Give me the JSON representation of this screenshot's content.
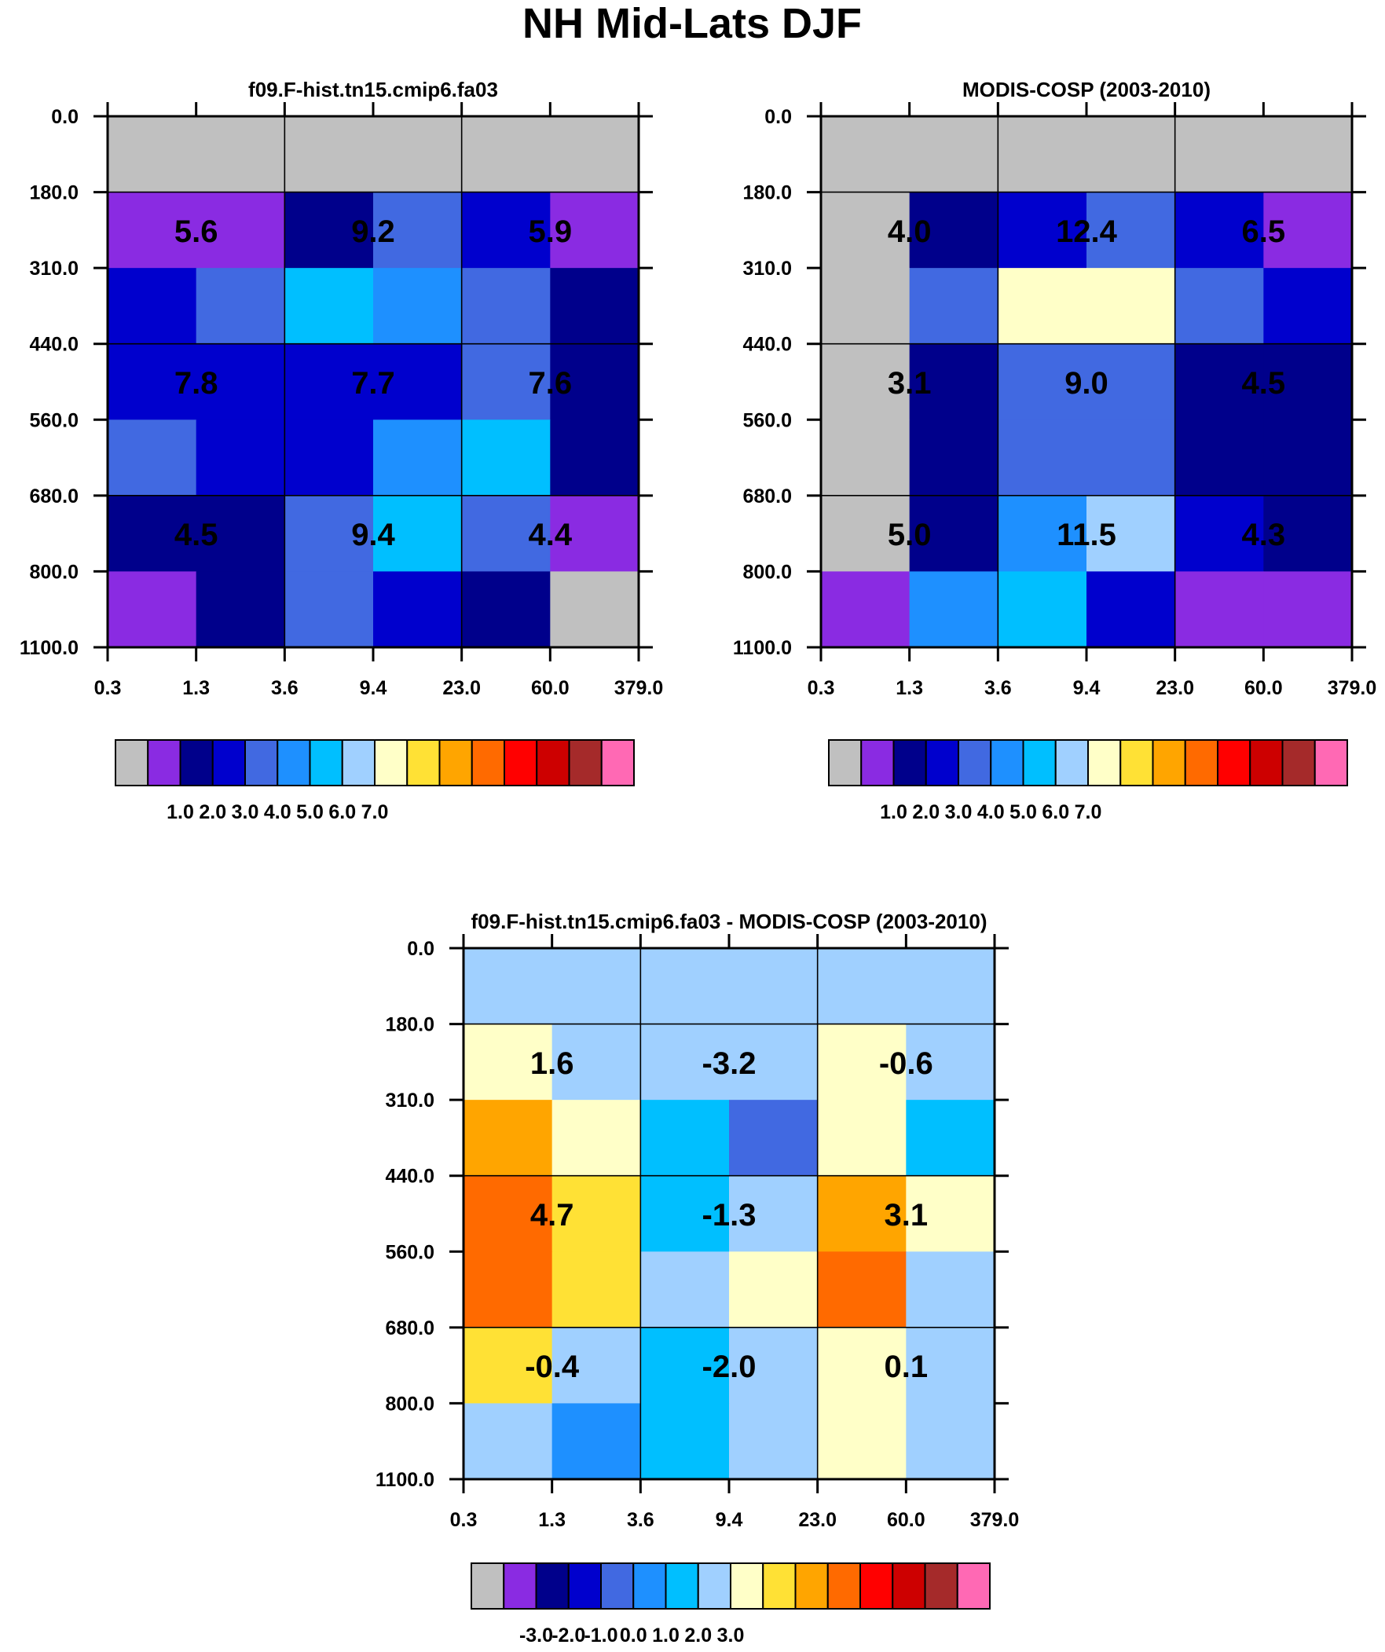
{
  "title": "NH Mid-Lats DJF",
  "chart_data": [
    {
      "type": "heatmap",
      "title": "f09.F-hist.tn15.cmip6.fa03",
      "x_edges": [
        "0.3",
        "1.3",
        "3.6",
        "9.4",
        "23.0",
        "60.0",
        "379.0"
      ],
      "y_edges": [
        "0.0",
        "180.0",
        "310.0",
        "440.0",
        "560.0",
        "680.0",
        "800.0",
        "1100.0"
      ],
      "fine_cells": [
        [
          "gray",
          "gray",
          "gray",
          "gray",
          "gray",
          "gray"
        ],
        [
          "purple",
          "purple",
          "navy",
          "royalblue",
          "medblue",
          "purple"
        ],
        [
          "medblue",
          "royalblue",
          "deepsky",
          "dodger",
          "royalblue",
          "navy"
        ],
        [
          "medblue",
          "medblue",
          "medblue",
          "medblue",
          "royalblue",
          "navy"
        ],
        [
          "royalblue",
          "medblue",
          "medblue",
          "dodger",
          "deepsky",
          "navy"
        ],
        [
          "navy",
          "navy",
          "royalblue",
          "deepsky",
          "royalblue",
          "purple"
        ],
        [
          "purple",
          "navy",
          "royalblue",
          "medblue",
          "navy",
          "gray"
        ]
      ],
      "coarse_labels": [
        [
          "5.6",
          "9.2",
          "5.9"
        ],
        [
          "7.8",
          "7.7",
          "7.6"
        ],
        [
          "4.5",
          "9.4",
          "4.4"
        ]
      ]
    },
    {
      "type": "heatmap",
      "title": "MODIS-COSP (2003-2010)",
      "x_edges": [
        "0.3",
        "1.3",
        "3.6",
        "9.4",
        "23.0",
        "60.0",
        "379.0"
      ],
      "y_edges": [
        "0.0",
        "180.0",
        "310.0",
        "440.0",
        "560.0",
        "680.0",
        "800.0",
        "1100.0"
      ],
      "fine_cells": [
        [
          "gray",
          "gray",
          "gray",
          "gray",
          "gray",
          "gray"
        ],
        [
          "gray",
          "navy",
          "medblue",
          "royalblue",
          "medblue",
          "purple"
        ],
        [
          "gray",
          "royalblue",
          "cream",
          "cream",
          "royalblue",
          "medblue"
        ],
        [
          "gray",
          "navy",
          "royalblue",
          "royalblue",
          "navy",
          "navy"
        ],
        [
          "gray",
          "navy",
          "royalblue",
          "royalblue",
          "navy",
          "navy"
        ],
        [
          "gray",
          "navy",
          "dodger",
          "lightblue",
          "medblue",
          "navy"
        ],
        [
          "purple",
          "dodger",
          "deepsky",
          "medblue",
          "purple",
          "purple"
        ]
      ],
      "coarse_labels": [
        [
          "4.0",
          "12.4",
          "6.5"
        ],
        [
          "3.1",
          "9.0",
          "4.5"
        ],
        [
          "5.0",
          "11.5",
          "4.3"
        ]
      ]
    },
    {
      "type": "heatmap",
      "title": "f09.F-hist.tn15.cmip6.fa03 - MODIS-COSP (2003-2010)",
      "x_edges": [
        "0.3",
        "1.3",
        "3.6",
        "9.4",
        "23.0",
        "60.0",
        "379.0"
      ],
      "y_edges": [
        "0.0",
        "180.0",
        "310.0",
        "440.0",
        "560.0",
        "680.0",
        "800.0",
        "1100.0"
      ],
      "fine_cells": [
        [
          "lightblue",
          "lightblue",
          "lightblue",
          "lightblue",
          "lightblue",
          "lightblue"
        ],
        [
          "cream",
          "lightblue",
          "lightblue",
          "lightblue",
          "cream",
          "lightblue"
        ],
        [
          "orange",
          "cream",
          "deepsky",
          "royalblue",
          "cream",
          "deepsky"
        ],
        [
          "darkorange",
          "yellow",
          "deepsky",
          "lightblue",
          "orange",
          "cream"
        ],
        [
          "darkorange",
          "yellow",
          "lightblue",
          "cream",
          "darkorange",
          "lightblue"
        ],
        [
          "yellow",
          "lightblue",
          "deepsky",
          "lightblue",
          "cream",
          "lightblue"
        ],
        [
          "lightblue",
          "dodger",
          "deepsky",
          "lightblue",
          "cream",
          "lightblue"
        ]
      ],
      "coarse_labels": [
        [
          "1.6",
          "-3.2",
          "-0.6"
        ],
        [
          "4.7",
          "-1.3",
          "3.1"
        ],
        [
          "-0.4",
          "-2.0",
          "0.1"
        ]
      ]
    }
  ],
  "colorbars": [
    {
      "labels": [
        "1.0",
        "2.0",
        "3.0",
        "4.0",
        "5.0",
        "6.0",
        "7.0"
      ]
    },
    {
      "labels": [
        "1.0",
        "2.0",
        "3.0",
        "4.0",
        "5.0",
        "6.0",
        "7.0"
      ]
    },
    {
      "labels": [
        "-3.0",
        "-2.0",
        "-1.0",
        "0.0",
        "1.0",
        "2.0",
        "3.0"
      ]
    }
  ],
  "palette": {
    "gray": "#c0c0c0",
    "purple": "#8a2be2",
    "navy": "#00008b",
    "medblue": "#0000cd",
    "royalblue": "#4169e1",
    "dodger": "#1e90ff",
    "deepsky": "#00bfff",
    "lightblue": "#a0d0ff",
    "cream": "#ffffc8",
    "yellow": "#ffe135",
    "orange": "#ffa500",
    "darkorange": "#ff6a00",
    "red": "#ff0000",
    "darkred": "#cd0000",
    "brown": "#a52a2a",
    "pink": "#ff69b4"
  },
  "colorbar_order": [
    "gray",
    "purple",
    "navy",
    "medblue",
    "royalblue",
    "dodger",
    "deepsky",
    "lightblue",
    "cream",
    "yellow",
    "orange",
    "darkorange",
    "red",
    "darkred",
    "brown",
    "pink"
  ]
}
